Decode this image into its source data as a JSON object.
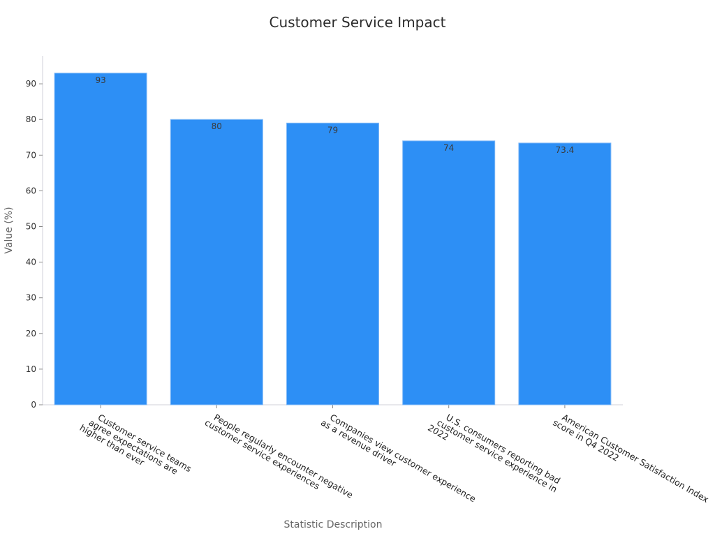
{
  "chart_data": {
    "type": "bar",
    "title": "Customer Service Impact",
    "xlabel": "Statistic Description",
    "ylabel": "Value (%)",
    "ylim": [
      0,
      97
    ],
    "yticks": [
      0,
      10,
      20,
      30,
      40,
      50,
      60,
      70,
      80,
      90
    ],
    "grid": false,
    "bar_color": "#2d8ff5",
    "categories": [
      [
        "Customer service teams",
        "agree expectations are",
        "higher than ever"
      ],
      [
        "People regularly encounter negative",
        "customer service experiences"
      ],
      [
        "Companies view customer experience",
        "as a revenue driver"
      ],
      [
        "U.S. consumers reporting bad",
        "customer service experience in",
        "2022"
      ],
      [
        "American Customer Satisfaction Index",
        "score in Q4 2022"
      ]
    ],
    "values": [
      93,
      80,
      79,
      74,
      73.4
    ],
    "data_labels": [
      "93",
      "80",
      "79",
      "74",
      "73.4"
    ]
  }
}
